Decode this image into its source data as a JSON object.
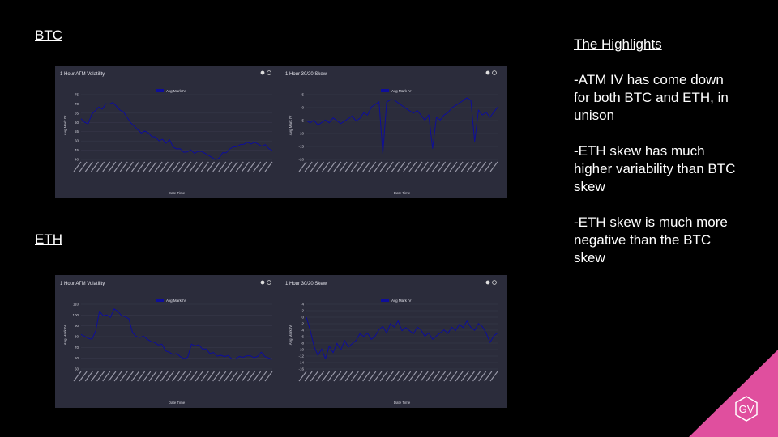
{
  "sections": {
    "btc": "BTC",
    "eth": "ETH"
  },
  "highlights": {
    "title": "The Highlights",
    "points": [
      "-ATM IV has come down for both BTC and ETH, in unison",
      "-ETH skew has much higher variability than BTC skew",
      "-ETH skew is much more negative than the BTC skew"
    ]
  },
  "logo_text": "GV",
  "colors": {
    "panel": "#2b2c3b",
    "line": "#0e0e9a",
    "grid": "#3e3f50",
    "accent": "#e04f9e"
  },
  "chart_data": [
    {
      "id": "btc-vol",
      "type": "line",
      "title": "1 Hour ATM Volatility",
      "legend": "Avg Mark IV",
      "xlabel": "Date Time",
      "ylabel": "Avg Mark IV",
      "ylim": [
        40,
        75
      ],
      "yticks": [
        40,
        45,
        50,
        55,
        60,
        65,
        70,
        75
      ],
      "series": [
        {
          "name": "Avg Mark IV",
          "values": [
            62,
            60,
            59,
            64,
            66,
            68,
            67,
            70,
            70,
            71,
            69,
            67,
            66,
            63,
            60,
            58,
            56,
            54,
            55,
            54,
            52,
            52,
            50,
            51,
            49,
            51,
            47,
            46,
            46,
            44,
            44,
            45,
            43,
            44,
            44,
            43,
            42,
            41,
            40,
            41,
            44,
            44,
            46,
            47,
            47,
            48,
            48,
            49,
            48,
            49,
            48,
            47,
            48,
            46,
            45
          ]
        }
      ]
    },
    {
      "id": "btc-skew",
      "type": "line",
      "title": "1 Hour 30/20 Skew",
      "legend": "Avg Mark IV",
      "xlabel": "Date Time",
      "ylabel": "Avg Mark IV",
      "ylim": [
        -20,
        5
      ],
      "yticks": [
        -20,
        -15,
        -10,
        -5,
        0,
        5
      ],
      "series": [
        {
          "name": "Avg Mark IV",
          "values": [
            -5,
            -6,
            -5,
            -7,
            -6,
            -5,
            -6,
            -4,
            -5,
            -6,
            -5,
            -4,
            -3,
            -5,
            -4,
            -2,
            -3,
            0,
            1,
            2,
            -18,
            2,
            3,
            3,
            2,
            1,
            0,
            -1,
            -2,
            -1,
            -3,
            -5,
            -3,
            -16,
            -4,
            -5,
            -3,
            -2,
            0,
            1,
            2,
            3,
            4,
            3,
            -13,
            -1,
            -3,
            -2,
            -4,
            -2,
            0
          ]
        }
      ]
    },
    {
      "id": "eth-vol",
      "type": "line",
      "title": "1 Hour ATM Volatility",
      "legend": "Avg Mark IV",
      "xlabel": "Date Time",
      "ylabel": "Avg Mark IV",
      "ylim": [
        50,
        110
      ],
      "yticks": [
        50,
        60,
        70,
        80,
        90,
        100,
        110
      ],
      "series": [
        {
          "name": "Avg Mark IV",
          "values": [
            82,
            80,
            78,
            77,
            85,
            103,
            99,
            100,
            98,
            106,
            104,
            100,
            99,
            97,
            84,
            80,
            79,
            80,
            77,
            75,
            74,
            72,
            73,
            67,
            66,
            64,
            65,
            62,
            60,
            61,
            73,
            71,
            72,
            68,
            68,
            64,
            65,
            62,
            63,
            62,
            63,
            60,
            60,
            62,
            61,
            62,
            62,
            60,
            61,
            65,
            61,
            60,
            59
          ]
        }
      ]
    },
    {
      "id": "eth-skew",
      "type": "line",
      "title": "1 Hour 30/20 Skew",
      "legend": "Avg Mark IV",
      "xlabel": "Date Time",
      "ylabel": "Avg Mark IV",
      "ylim": [
        -16,
        4
      ],
      "yticks": [
        -16,
        -14,
        -12,
        -10,
        -8,
        -6,
        -4,
        -2,
        0,
        2,
        4
      ],
      "series": [
        {
          "name": "Avg Mark IV",
          "values": [
            0,
            -4,
            -9,
            -12,
            -10,
            -13,
            -9,
            -11,
            -8,
            -10,
            -7,
            -9,
            -8,
            -7,
            -5,
            -6,
            -5,
            -7,
            -6,
            -4,
            -3,
            -5,
            -2,
            -3,
            -1,
            -4,
            -3,
            -4,
            -5,
            -3,
            -4,
            -6,
            -5,
            -7,
            -6,
            -5,
            -4,
            -5,
            -3,
            -4,
            -2,
            -3,
            -1,
            -3,
            -4,
            -2,
            -3,
            -5,
            -8,
            -6,
            -5
          ]
        }
      ]
    }
  ]
}
